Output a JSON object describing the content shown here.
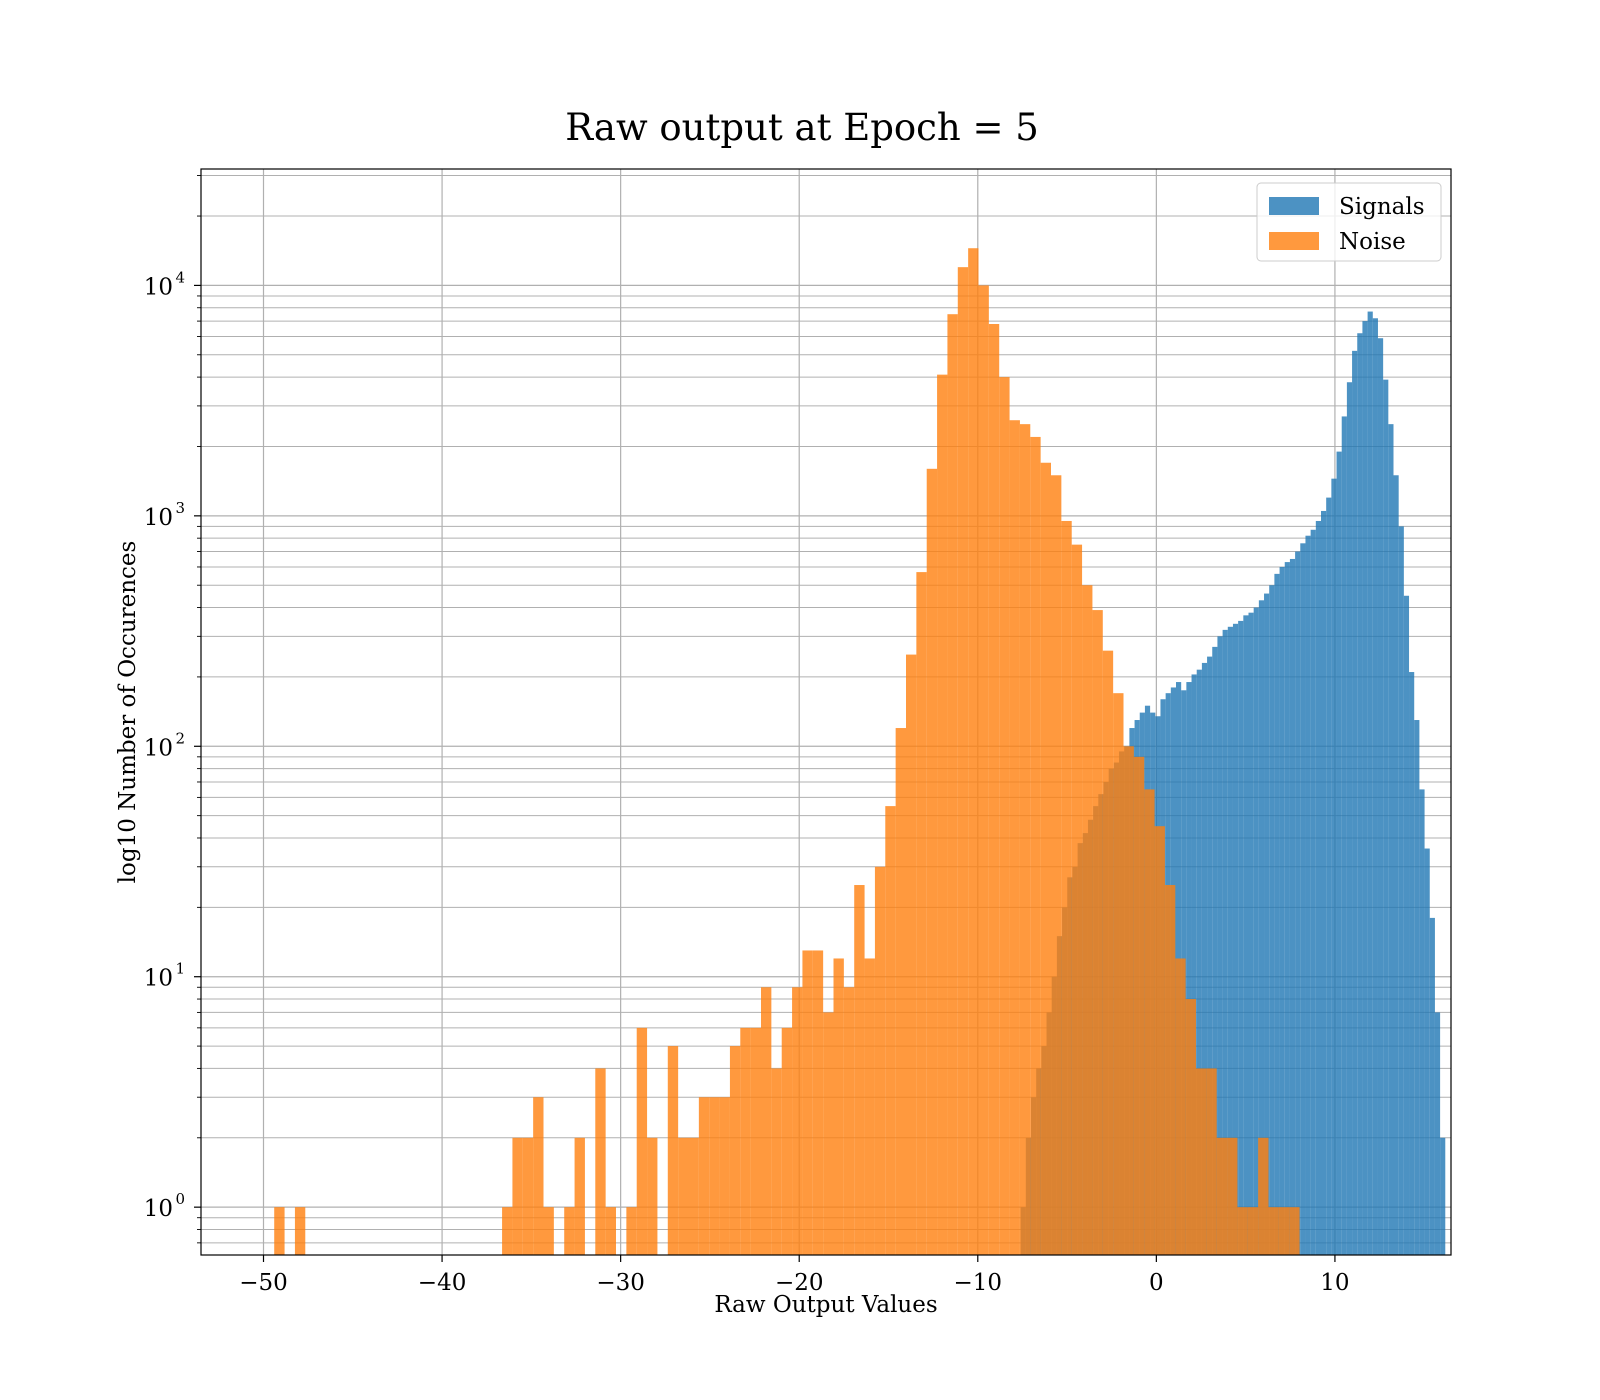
{
  "chart_data": {
    "type": "bar",
    "title": "Raw output at Epoch = 5",
    "xlabel": "Raw Output Values",
    "ylabel": "log10 Number of Occurences",
    "xlim": [
      -53.5,
      16.5
    ],
    "ylim": [
      0.62,
      32000
    ],
    "yscale": "log",
    "grid": true,
    "legend_placement": "top-right",
    "x_ticks": [
      {
        "value": -50,
        "label": "−50"
      },
      {
        "value": -40,
        "label": "−40"
      },
      {
        "value": -30,
        "label": "−30"
      },
      {
        "value": -20,
        "label": "−20"
      },
      {
        "value": -10,
        "label": "−10"
      },
      {
        "value": 0,
        "label": "0"
      },
      {
        "value": 10,
        "label": "10"
      }
    ],
    "y_ticks": [
      {
        "value": 1,
        "base": "10",
        "exp": "0"
      },
      {
        "value": 10,
        "base": "10",
        "exp": "1"
      },
      {
        "value": 100,
        "base": "10",
        "exp": "2"
      },
      {
        "value": 1000,
        "base": "10",
        "exp": "3"
      },
      {
        "value": 10000,
        "base": "10",
        "exp": "4"
      }
    ],
    "series": [
      {
        "name": "Signals",
        "color": "#1f77b4",
        "opacity": 0.8,
        "bin_start": -7.6,
        "bin_width": 0.29,
        "counts": [
          1,
          2,
          3,
          4,
          5,
          7,
          10,
          15,
          20,
          27,
          30,
          38,
          42,
          48,
          55,
          62,
          70,
          80,
          85,
          95,
          100,
          120,
          130,
          140,
          150,
          140,
          135,
          160,
          170,
          180,
          190,
          175,
          190,
          205,
          215,
          230,
          245,
          270,
          300,
          320,
          330,
          340,
          350,
          370,
          380,
          400,
          430,
          460,
          500,
          560,
          600,
          630,
          650,
          700,
          760,
          820,
          870,
          950,
          1050,
          1200,
          1450,
          1900,
          2700,
          3800,
          5200,
          6200,
          7000,
          7700,
          7200,
          5900,
          3900,
          2500,
          1500,
          900,
          450,
          210,
          130,
          65,
          36,
          18,
          7,
          2
        ]
      },
      {
        "name": "Noise",
        "color": "#ff7f0e",
        "opacity": 0.8,
        "bin_start": -49.4,
        "bin_width": 0.58,
        "counts": [
          1,
          0,
          1,
          0,
          0,
          0,
          0,
          0,
          0,
          0,
          0,
          0,
          0,
          0,
          0,
          0,
          0,
          0,
          0,
          0,
          0,
          0,
          1,
          2,
          2,
          3,
          1,
          0,
          1,
          2,
          0,
          4,
          1,
          0,
          1,
          6,
          2,
          0,
          5,
          2,
          2,
          3,
          3,
          3,
          5,
          6,
          6,
          9,
          4,
          6,
          9,
          13,
          13,
          7,
          12,
          9,
          25,
          12,
          30,
          55,
          120,
          250,
          570,
          1600,
          4100,
          7500,
          12000,
          14500,
          10000,
          6800,
          4000,
          2600,
          2500,
          2200,
          1700,
          1500,
          950,
          750,
          500,
          390,
          260,
          170,
          100,
          90,
          65,
          45,
          25,
          12,
          8,
          4,
          4,
          2,
          2,
          1,
          1,
          2,
          1,
          1,
          1
        ]
      }
    ]
  }
}
